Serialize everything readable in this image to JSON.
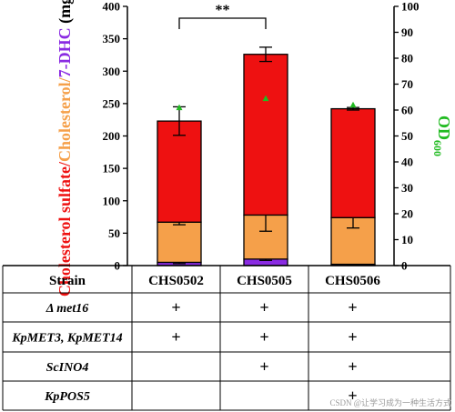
{
  "chart_data": {
    "type": "bar",
    "stacked": true,
    "categories": [
      "CHS0502",
      "CHS0505",
      "CHS0506"
    ],
    "ylabel_parts": [
      {
        "text": "Cholesterol sulfate/",
        "color": "#ee1111"
      },
      {
        "text": "Cholesterol/",
        "color": "#f5a04a"
      },
      {
        "text": "7-DHC",
        "color": "#8a2be2"
      },
      {
        "text": " (mg/L)",
        "color": "#000000"
      }
    ],
    "y2label_main": "OD",
    "y2label_sub": "600",
    "y2label_color": "#22bb22",
    "ylim": [
      0,
      400
    ],
    "yticks": [
      0,
      50,
      100,
      150,
      200,
      250,
      300,
      350,
      400
    ],
    "y2lim": [
      0,
      100
    ],
    "y2ticks": [
      0,
      10,
      20,
      30,
      40,
      50,
      60,
      70,
      80,
      90,
      100
    ],
    "series": [
      {
        "name": "7-DHC",
        "color": "#8a2be2",
        "values": [
          5,
          10,
          2
        ],
        "errors": [
          2,
          2,
          1
        ]
      },
      {
        "name": "Cholesterol",
        "color": "#f5a04a",
        "values": [
          62,
          68,
          72
        ],
        "errors": [
          4,
          25,
          16
        ]
      },
      {
        "name": "Cholesterol sulfate",
        "color": "#ee1111",
        "values": [
          156,
          248,
          168
        ],
        "errors": [
          22,
          11,
          2
        ]
      }
    ],
    "od600": {
      "color": "#22bb22",
      "values": [
        61,
        64.5,
        62
      ]
    },
    "significance": {
      "label": "**",
      "from": 0,
      "to": 1
    }
  },
  "table": {
    "header_label": "Strain",
    "rows": [
      {
        "label": "Δ met16",
        "marks": [
          "+",
          "+",
          "+"
        ]
      },
      {
        "label": "KpMET3, KpMET14",
        "marks": [
          "+",
          "+",
          "+"
        ]
      },
      {
        "label": "ScINO4",
        "marks": [
          "",
          "+",
          "+"
        ]
      },
      {
        "label": "KpPOS5",
        "marks": [
          "",
          "",
          "+"
        ]
      }
    ]
  },
  "watermark": "CSDN @让学习成为一种生活方式"
}
